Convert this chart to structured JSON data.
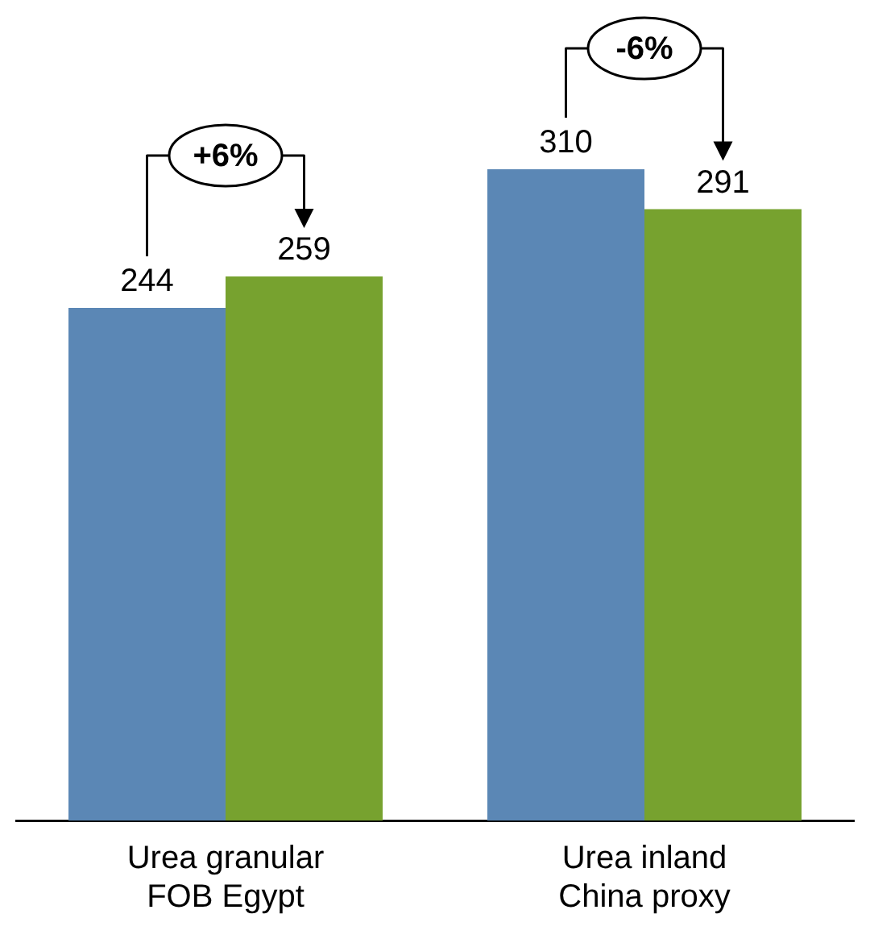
{
  "chart_data": {
    "type": "bar",
    "categories": [
      "Urea granular FOB Egypt",
      "Urea inland China proxy"
    ],
    "series": [
      {
        "color": "#5b87b5",
        "values": [
          244,
          310
        ]
      },
      {
        "color": "#77a22f",
        "values": [
          259,
          291
        ]
      }
    ],
    "data_labels": true,
    "legend": false,
    "annotations": [
      "+6%",
      "-6%"
    ]
  }
}
